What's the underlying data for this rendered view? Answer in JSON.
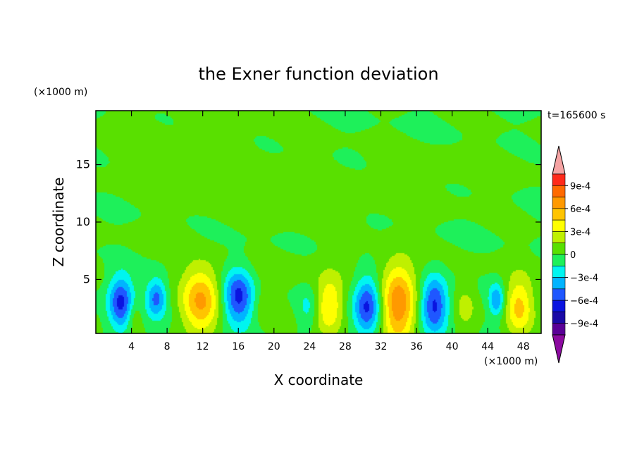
{
  "chart_data": {
    "type": "heatmap",
    "title": "the Exner function deviation",
    "xlabel": "X coordinate",
    "ylabel": "Z coordinate",
    "x_unit": "(×1000 m)",
    "y_unit": "(×1000 m)",
    "time_label": "t=165600 s",
    "xlim": [
      0,
      50
    ],
    "ylim": [
      0.3,
      19.7
    ],
    "x_ticks": [
      "4",
      "8",
      "12",
      "16",
      "20",
      "24",
      "28",
      "32",
      "36",
      "40",
      "44",
      "48"
    ],
    "x_tick_values": [
      4,
      8,
      12,
      16,
      20,
      24,
      28,
      32,
      36,
      40,
      44,
      48
    ],
    "y_ticks": [
      "5",
      "10",
      "15"
    ],
    "y_tick_values": [
      5,
      10,
      15
    ],
    "colorbar": {
      "labels": [
        "9e-4",
        "6e-4",
        "3e-4",
        "0",
        "−3e-4",
        "−6e-4",
        "−9e-4"
      ],
      "label_values": [
        0.0009,
        0.0006,
        0.0003,
        0,
        -0.0003,
        -0.0006,
        -0.0009
      ],
      "levels_from_top": [
        0.0009,
        0.00075,
        0.0006,
        0.00045,
        0.0003,
        0.00015,
        0,
        -0.00015,
        -0.0003,
        -0.00045,
        -0.0006,
        -0.00075,
        -0.0009
      ],
      "colors_from_top": [
        "#ff2a1a",
        "#ff6a00",
        "#ff9900",
        "#ffc400",
        "#ffff00",
        "#bff000",
        "#59e000",
        "#1ef05a",
        "#00f5f0",
        "#00b4ff",
        "#1f57ff",
        "#0a14e0",
        "#1a0aa6",
        "#5a0096"
      ],
      "over_color": "#f5a3a3",
      "under_color": "#8c0aa0"
    },
    "features": [
      {
        "x": 2.8,
        "z": 3.0,
        "sx": 1.0,
        "sz": 1.7,
        "value": -0.00065
      },
      {
        "x": 4.3,
        "z": 1.8,
        "sx": 0.6,
        "sz": 1.0,
        "value": 0.0002
      },
      {
        "x": 6.8,
        "z": 3.4,
        "sx": 0.8,
        "sz": 1.2,
        "value": -0.0005
      },
      {
        "x": 11.8,
        "z": 3.1,
        "sx": 1.5,
        "sz": 2.0,
        "value": 0.00062
      },
      {
        "x": 16.0,
        "z": 3.5,
        "sx": 1.2,
        "sz": 1.7,
        "value": -0.00065
      },
      {
        "x": 19.0,
        "z": 2.7,
        "sx": 0.9,
        "sz": 1.3,
        "value": 0.00012
      },
      {
        "x": 23.8,
        "z": 2.5,
        "sx": 0.8,
        "sz": 1.2,
        "value": -0.0002
      },
      {
        "x": 26.2,
        "z": 2.7,
        "sx": 1.1,
        "sz": 1.8,
        "value": 0.00048
      },
      {
        "x": 30.5,
        "z": 2.7,
        "sx": 1.1,
        "sz": 1.8,
        "value": -0.00066
      },
      {
        "x": 34.0,
        "z": 2.8,
        "sx": 1.4,
        "sz": 2.4,
        "value": 0.00075
      },
      {
        "x": 38.0,
        "z": 2.8,
        "sx": 1.1,
        "sz": 1.8,
        "value": -0.00066
      },
      {
        "x": 41.5,
        "z": 2.6,
        "sx": 0.9,
        "sz": 1.4,
        "value": 0.0002
      },
      {
        "x": 45.0,
        "z": 3.2,
        "sx": 0.6,
        "sz": 1.0,
        "value": -0.00045
      },
      {
        "x": 47.5,
        "z": 2.6,
        "sx": 1.1,
        "sz": 1.8,
        "value": 0.0005
      },
      {
        "x": 6.8,
        "z": 8.6,
        "sx": 2.4,
        "sz": 0.9,
        "value": 0.0001
      },
      {
        "x": 10.0,
        "z": 16.2,
        "sx": 8.0,
        "sz": 2.6,
        "value": 6e-05
      },
      {
        "x": 26.0,
        "z": 12.0,
        "sx": 10.0,
        "sz": 1.6,
        "value": 6e-05
      },
      {
        "x": 40.0,
        "z": 15.0,
        "sx": 7.0,
        "sz": 1.2,
        "value": 6e-05
      },
      {
        "x": 25.0,
        "z": 6.0,
        "sx": 14.0,
        "sz": 1.2,
        "value": 5e-05
      }
    ]
  }
}
